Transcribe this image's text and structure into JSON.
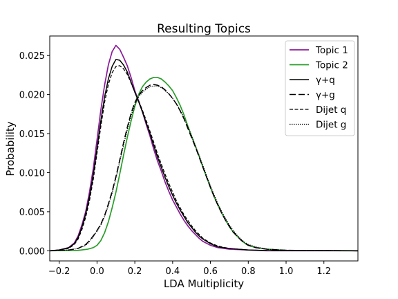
{
  "chart_data": {
    "type": "line",
    "title": "Resulting Topics",
    "xlabel": "LDA Multiplicity",
    "ylabel": "Probability",
    "xlim": [
      -0.25,
      1.38
    ],
    "ylim": [
      -0.0013,
      0.0275
    ],
    "xticks": [
      -0.2,
      0.0,
      0.2,
      0.4,
      0.6,
      0.8,
      1.0,
      1.2
    ],
    "xtick_labels": [
      "−0.2",
      "0.0",
      "0.2",
      "0.4",
      "0.6",
      "0.8",
      "1.0",
      "1.2"
    ],
    "yticks": [
      0.0,
      0.005,
      0.01,
      0.015,
      0.02,
      0.025
    ],
    "ytick_labels": [
      "0.000",
      "0.005",
      "0.010",
      "0.015",
      "0.020",
      "0.025"
    ],
    "grid": false,
    "legend_position": "top-right",
    "series": [
      {
        "name": "Topic 1",
        "color": "#8b1a9a",
        "style": "solid-step",
        "points": [
          [
            -0.25,
            0
          ],
          [
            -0.2,
            0.0001
          ],
          [
            -0.15,
            0.0004
          ],
          [
            -0.12,
            0.001
          ],
          [
            -0.1,
            0.0019
          ],
          [
            -0.08,
            0.0033
          ],
          [
            -0.06,
            0.005
          ],
          [
            -0.04,
            0.0075
          ],
          [
            -0.02,
            0.0105
          ],
          [
            0,
            0.0142
          ],
          [
            0.02,
            0.018
          ],
          [
            0.04,
            0.0212
          ],
          [
            0.06,
            0.0238
          ],
          [
            0.08,
            0.0255
          ],
          [
            0.1,
            0.0263
          ],
          [
            0.12,
            0.0258
          ],
          [
            0.14,
            0.0248
          ],
          [
            0.16,
            0.0237
          ],
          [
            0.18,
            0.0222
          ],
          [
            0.2,
            0.0205
          ],
          [
            0.22,
            0.0192
          ],
          [
            0.24,
            0.0178
          ],
          [
            0.26,
            0.0162
          ],
          [
            0.28,
            0.0147
          ],
          [
            0.3,
            0.013
          ],
          [
            0.32,
            0.0115
          ],
          [
            0.34,
            0.0102
          ],
          [
            0.36,
            0.0088
          ],
          [
            0.38,
            0.0076
          ],
          [
            0.4,
            0.0065
          ],
          [
            0.42,
            0.0056
          ],
          [
            0.44,
            0.0047
          ],
          [
            0.46,
            0.0039
          ],
          [
            0.48,
            0.0032
          ],
          [
            0.5,
            0.0026
          ],
          [
            0.52,
            0.0021
          ],
          [
            0.54,
            0.0016
          ],
          [
            0.56,
            0.0012
          ],
          [
            0.6,
            0.0007
          ],
          [
            0.64,
            0.0004
          ],
          [
            0.7,
            0.0002
          ],
          [
            0.8,
            0.0001
          ],
          [
            0.9,
            0
          ],
          [
            1.38,
            0
          ]
        ]
      },
      {
        "name": "Topic 2",
        "color": "#2a9d2a",
        "style": "solid-step",
        "points": [
          [
            -0.25,
            0
          ],
          [
            -0.1,
            5e-05
          ],
          [
            -0.05,
            0.0002
          ],
          [
            -0.02,
            0.0004
          ],
          [
            0,
            0.0007
          ],
          [
            0.02,
            0.0013
          ],
          [
            0.04,
            0.0023
          ],
          [
            0.06,
            0.0037
          ],
          [
            0.08,
            0.0055
          ],
          [
            0.1,
            0.0075
          ],
          [
            0.12,
            0.0098
          ],
          [
            0.14,
            0.0122
          ],
          [
            0.16,
            0.0145
          ],
          [
            0.18,
            0.0166
          ],
          [
            0.2,
            0.0185
          ],
          [
            0.22,
            0.02
          ],
          [
            0.24,
            0.021
          ],
          [
            0.26,
            0.0216
          ],
          [
            0.28,
            0.022
          ],
          [
            0.3,
            0.0222
          ],
          [
            0.32,
            0.0222
          ],
          [
            0.34,
            0.022
          ],
          [
            0.36,
            0.0216
          ],
          [
            0.38,
            0.0211
          ],
          [
            0.4,
            0.0205
          ],
          [
            0.42,
            0.0196
          ],
          [
            0.44,
            0.0186
          ],
          [
            0.46,
            0.0174
          ],
          [
            0.48,
            0.016
          ],
          [
            0.5,
            0.0147
          ],
          [
            0.52,
            0.0134
          ],
          [
            0.54,
            0.0121
          ],
          [
            0.56,
            0.0107
          ],
          [
            0.58,
            0.0094
          ],
          [
            0.6,
            0.0081
          ],
          [
            0.62,
            0.0069
          ],
          [
            0.64,
            0.0058
          ],
          [
            0.66,
            0.0048
          ],
          [
            0.68,
            0.0039
          ],
          [
            0.7,
            0.0031
          ],
          [
            0.72,
            0.0024
          ],
          [
            0.74,
            0.0019
          ],
          [
            0.76,
            0.0014
          ],
          [
            0.78,
            0.001
          ],
          [
            0.8,
            0.0007
          ],
          [
            0.84,
            0.0004
          ],
          [
            0.9,
            0.0002
          ],
          [
            1.0,
            5e-05
          ],
          [
            1.38,
            0
          ]
        ]
      },
      {
        "name": "γ+q",
        "color": "#000000",
        "style": "solid",
        "points": [
          [
            -0.25,
            0
          ],
          [
            -0.2,
            0.0001
          ],
          [
            -0.15,
            0.0004
          ],
          [
            -0.12,
            0.0009
          ],
          [
            -0.1,
            0.0017
          ],
          [
            -0.08,
            0.003
          ],
          [
            -0.06,
            0.0047
          ],
          [
            -0.04,
            0.0069
          ],
          [
            -0.02,
            0.0097
          ],
          [
            0,
            0.0131
          ],
          [
            0.02,
            0.0166
          ],
          [
            0.04,
            0.0197
          ],
          [
            0.06,
            0.022
          ],
          [
            0.08,
            0.0236
          ],
          [
            0.1,
            0.0245
          ],
          [
            0.12,
            0.0244
          ],
          [
            0.14,
            0.0238
          ],
          [
            0.16,
            0.0229
          ],
          [
            0.18,
            0.0216
          ],
          [
            0.2,
            0.0203
          ],
          [
            0.22,
            0.0191
          ],
          [
            0.24,
            0.0178
          ],
          [
            0.26,
            0.0164
          ],
          [
            0.28,
            0.015
          ],
          [
            0.3,
            0.0135
          ],
          [
            0.32,
            0.012
          ],
          [
            0.34,
            0.0107
          ],
          [
            0.36,
            0.0094
          ],
          [
            0.38,
            0.0082
          ],
          [
            0.4,
            0.0071
          ],
          [
            0.42,
            0.0061
          ],
          [
            0.44,
            0.0052
          ],
          [
            0.46,
            0.0044
          ],
          [
            0.48,
            0.0036
          ],
          [
            0.5,
            0.003
          ],
          [
            0.52,
            0.0024
          ],
          [
            0.54,
            0.0019
          ],
          [
            0.56,
            0.0015
          ],
          [
            0.6,
            0.0009
          ],
          [
            0.64,
            0.0005
          ],
          [
            0.7,
            0.0003
          ],
          [
            0.8,
            0.0001
          ],
          [
            0.9,
            3e-05
          ],
          [
            1.38,
            0
          ]
        ]
      },
      {
        "name": "γ+g",
        "color": "#000000",
        "style": "long-dash",
        "points": [
          [
            -0.25,
            0
          ],
          [
            -0.15,
            0.0001
          ],
          [
            -0.1,
            0.0003
          ],
          [
            -0.06,
            0.0008
          ],
          [
            -0.04,
            0.0013
          ],
          [
            -0.02,
            0.0019
          ],
          [
            0,
            0.0026
          ],
          [
            0.02,
            0.0034
          ],
          [
            0.04,
            0.0045
          ],
          [
            0.06,
            0.006
          ],
          [
            0.08,
            0.0076
          ],
          [
            0.1,
            0.0095
          ],
          [
            0.12,
            0.0116
          ],
          [
            0.14,
            0.0138
          ],
          [
            0.16,
            0.0158
          ],
          [
            0.18,
            0.0176
          ],
          [
            0.2,
            0.019
          ],
          [
            0.22,
            0.0199
          ],
          [
            0.24,
            0.0205
          ],
          [
            0.26,
            0.0209
          ],
          [
            0.28,
            0.0212
          ],
          [
            0.3,
            0.0213
          ],
          [
            0.32,
            0.0212
          ],
          [
            0.34,
            0.021
          ],
          [
            0.36,
            0.0206
          ],
          [
            0.38,
            0.0201
          ],
          [
            0.4,
            0.0195
          ],
          [
            0.42,
            0.0188
          ],
          [
            0.44,
            0.0179
          ],
          [
            0.46,
            0.0169
          ],
          [
            0.48,
            0.0157
          ],
          [
            0.5,
            0.0145
          ],
          [
            0.52,
            0.0133
          ],
          [
            0.54,
            0.012
          ],
          [
            0.56,
            0.0107
          ],
          [
            0.58,
            0.0094
          ],
          [
            0.6,
            0.0081
          ],
          [
            0.62,
            0.0069
          ],
          [
            0.64,
            0.0058
          ],
          [
            0.66,
            0.0048
          ],
          [
            0.68,
            0.0039
          ],
          [
            0.7,
            0.0031
          ],
          [
            0.72,
            0.0024
          ],
          [
            0.74,
            0.0019
          ],
          [
            0.76,
            0.0014
          ],
          [
            0.78,
            0.001
          ],
          [
            0.8,
            0.0007
          ],
          [
            0.84,
            0.0004
          ],
          [
            0.9,
            0.0002
          ],
          [
            1.0,
            6e-05
          ],
          [
            1.38,
            0
          ]
        ]
      },
      {
        "name": "Dijet q",
        "color": "#000000",
        "style": "dash",
        "points": [
          [
            -0.25,
            0
          ],
          [
            -0.2,
            0.0001
          ],
          [
            -0.15,
            0.0003
          ],
          [
            -0.12,
            0.0008
          ],
          [
            -0.1,
            0.0015
          ],
          [
            -0.08,
            0.0027
          ],
          [
            -0.06,
            0.0043
          ],
          [
            -0.04,
            0.0064
          ],
          [
            -0.02,
            0.0091
          ],
          [
            0,
            0.0125
          ],
          [
            0.02,
            0.0159
          ],
          [
            0.04,
            0.019
          ],
          [
            0.06,
            0.0213
          ],
          [
            0.08,
            0.0228
          ],
          [
            0.1,
            0.0236
          ],
          [
            0.12,
            0.0237
          ],
          [
            0.14,
            0.0233
          ],
          [
            0.16,
            0.0226
          ],
          [
            0.18,
            0.0215
          ],
          [
            0.2,
            0.0203
          ],
          [
            0.22,
            0.0192
          ],
          [
            0.24,
            0.018
          ],
          [
            0.26,
            0.0167
          ],
          [
            0.28,
            0.0153
          ],
          [
            0.3,
            0.0139
          ],
          [
            0.32,
            0.0124
          ],
          [
            0.34,
            0.0111
          ],
          [
            0.36,
            0.0098
          ],
          [
            0.38,
            0.0086
          ],
          [
            0.4,
            0.0075
          ],
          [
            0.42,
            0.0064
          ],
          [
            0.44,
            0.0055
          ],
          [
            0.46,
            0.0046
          ],
          [
            0.48,
            0.0039
          ],
          [
            0.5,
            0.0032
          ],
          [
            0.52,
            0.0026
          ],
          [
            0.54,
            0.0021
          ],
          [
            0.56,
            0.0016
          ],
          [
            0.6,
            0.001
          ],
          [
            0.64,
            0.0006
          ],
          [
            0.7,
            0.0003
          ],
          [
            0.8,
            0.0001
          ],
          [
            0.9,
            3e-05
          ],
          [
            1.38,
            0
          ]
        ]
      },
      {
        "name": "Dijet g",
        "color": "#000000",
        "style": "dot",
        "points": [
          [
            -0.25,
            0
          ],
          [
            -0.15,
            0.0001
          ],
          [
            -0.1,
            0.0003
          ],
          [
            -0.06,
            0.0007
          ],
          [
            -0.04,
            0.0012
          ],
          [
            -0.02,
            0.0018
          ],
          [
            0,
            0.0025
          ],
          [
            0.02,
            0.0033
          ],
          [
            0.04,
            0.0044
          ],
          [
            0.06,
            0.0058
          ],
          [
            0.08,
            0.0074
          ],
          [
            0.1,
            0.0093
          ],
          [
            0.12,
            0.0114
          ],
          [
            0.14,
            0.0135
          ],
          [
            0.16,
            0.0155
          ],
          [
            0.18,
            0.0173
          ],
          [
            0.2,
            0.0187
          ],
          [
            0.22,
            0.0197
          ],
          [
            0.24,
            0.0203
          ],
          [
            0.26,
            0.0207
          ],
          [
            0.28,
            0.021
          ],
          [
            0.3,
            0.0211
          ],
          [
            0.32,
            0.0211
          ],
          [
            0.34,
            0.0209
          ],
          [
            0.36,
            0.0205
          ],
          [
            0.38,
            0.0201
          ],
          [
            0.4,
            0.0195
          ],
          [
            0.42,
            0.0188
          ],
          [
            0.44,
            0.018
          ],
          [
            0.46,
            0.017
          ],
          [
            0.48,
            0.0159
          ],
          [
            0.5,
            0.0147
          ],
          [
            0.52,
            0.0135
          ],
          [
            0.54,
            0.0122
          ],
          [
            0.56,
            0.0109
          ],
          [
            0.58,
            0.0096
          ],
          [
            0.6,
            0.0083
          ],
          [
            0.62,
            0.0071
          ],
          [
            0.64,
            0.006
          ],
          [
            0.66,
            0.005
          ],
          [
            0.68,
            0.0041
          ],
          [
            0.7,
            0.0033
          ],
          [
            0.72,
            0.0026
          ],
          [
            0.74,
            0.002
          ],
          [
            0.76,
            0.0015
          ],
          [
            0.78,
            0.0011
          ],
          [
            0.8,
            0.0008
          ],
          [
            0.84,
            0.0005
          ],
          [
            0.9,
            0.0002
          ],
          [
            1.0,
            7e-05
          ],
          [
            1.38,
            0
          ]
        ]
      }
    ]
  }
}
